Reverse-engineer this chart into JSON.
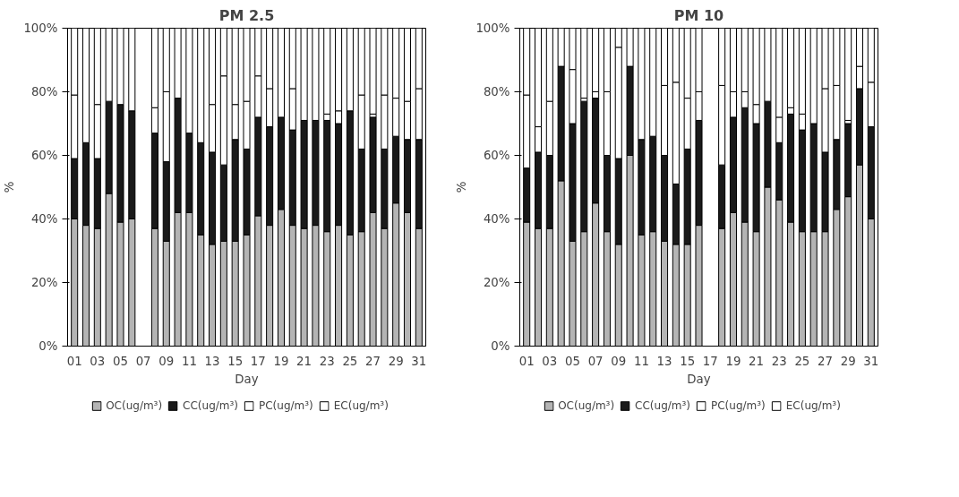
{
  "chart_data": [
    {
      "type": "bar",
      "title": "PM 2.5",
      "xlabel": "Day",
      "ylabel": "%",
      "stacked": true,
      "legend": "bottom",
      "grid": false,
      "categories": [
        "01",
        null,
        "03",
        null,
        "05",
        null,
        "07",
        null,
        "09",
        null,
        "11",
        null,
        "13",
        null,
        "15",
        null,
        "17",
        null,
        "19",
        null,
        "21",
        null,
        "23",
        null,
        "25",
        null,
        "27",
        null,
        "29",
        null,
        "31"
      ],
      "ylim": [
        0,
        100
      ],
      "yticks": [
        {
          "value": 0,
          "label": "0%"
        },
        {
          "value": 20,
          "label": "20%"
        },
        {
          "value": 40,
          "label": "40%"
        },
        {
          "value": 60,
          "label": "60%"
        },
        {
          "value": 80,
          "label": "80%"
        },
        {
          "value": 100,
          "label": "100%"
        }
      ],
      "series": [
        {
          "name": "OC(ug/m³)",
          "color": "#b4b4b4",
          "values": [
            40,
            38,
            37,
            48,
            39,
            40,
            null,
            37,
            33,
            42,
            42,
            35,
            32,
            33,
            33,
            35,
            41,
            38,
            43,
            38,
            37,
            38,
            36,
            38,
            35,
            36,
            42,
            37,
            45,
            42,
            37
          ]
        },
        {
          "name": "CC(ug/m³)",
          "color": "#1a1a1a",
          "values": [
            19,
            26,
            22,
            29,
            37,
            34,
            null,
            30,
            25,
            36,
            25,
            29,
            29,
            24,
            32,
            27,
            31,
            31,
            29,
            30,
            34,
            33,
            35,
            32,
            39,
            26,
            30,
            25,
            21,
            23,
            28
          ]
        },
        {
          "name": "PC(ug/m³)",
          "color": "#ffffff",
          "values": [
            20,
            36,
            17,
            23,
            24,
            26,
            null,
            8,
            22,
            22,
            33,
            36,
            15,
            28,
            11,
            15,
            13,
            12,
            28,
            13,
            29,
            29,
            2,
            4,
            26,
            17,
            1,
            17,
            12,
            12,
            16
          ]
        },
        {
          "name": "EC(ug/m³)",
          "color": "#ffffff",
          "values": [
            21,
            0,
            24,
            0,
            0,
            0,
            null,
            25,
            20,
            0,
            0,
            0,
            24,
            15,
            24,
            23,
            15,
            19,
            0,
            19,
            0,
            0,
            27,
            26,
            0,
            21,
            27,
            21,
            22,
            23,
            19
          ]
        }
      ]
    },
    {
      "type": "bar",
      "title": "PM 10",
      "xlabel": "Day",
      "ylabel": "%",
      "stacked": true,
      "legend": "bottom",
      "grid": false,
      "categories": [
        "01",
        null,
        "03",
        null,
        "05",
        null,
        "07",
        null,
        "09",
        null,
        "11",
        null,
        "13",
        null,
        "15",
        null,
        "17",
        null,
        "19",
        null,
        "21",
        null,
        "23",
        null,
        "25",
        null,
        "27",
        null,
        "29",
        null,
        "31"
      ],
      "ylim": [
        0,
        100
      ],
      "yticks": [
        {
          "value": 0,
          "label": "0%"
        },
        {
          "value": 20,
          "label": "20%"
        },
        {
          "value": 40,
          "label": "40%"
        },
        {
          "value": 60,
          "label": "60%"
        },
        {
          "value": 80,
          "label": "80%"
        },
        {
          "value": 100,
          "label": "100%"
        }
      ],
      "series": [
        {
          "name": "OC(ug/m³)",
          "color": "#b4b4b4",
          "values": [
            39,
            37,
            37,
            52,
            33,
            36,
            45,
            36,
            32,
            60,
            35,
            36,
            33,
            32,
            32,
            38,
            null,
            37,
            42,
            39,
            36,
            50,
            46,
            39,
            36,
            36,
            36,
            43,
            47,
            57,
            40
          ]
        },
        {
          "name": "CC(ug/m³)",
          "color": "#1a1a1a",
          "values": [
            17,
            24,
            23,
            36,
            37,
            41,
            33,
            24,
            27,
            28,
            30,
            30,
            27,
            19,
            30,
            33,
            null,
            20,
            30,
            36,
            34,
            27,
            18,
            34,
            32,
            34,
            25,
            22,
            23,
            24,
            29
          ]
        },
        {
          "name": "PC(ug/m³)",
          "color": "#ffffff",
          "values": [
            23,
            8,
            17,
            12,
            17,
            1,
            2,
            20,
            35,
            12,
            35,
            34,
            22,
            32,
            16,
            9,
            null,
            25,
            8,
            5,
            6,
            23,
            8,
            2,
            5,
            30,
            20,
            17,
            1,
            7,
            14
          ]
        },
        {
          "name": "EC(ug/m³)",
          "color": "#ffffff",
          "values": [
            21,
            31,
            23,
            0,
            13,
            22,
            20,
            20,
            6,
            0,
            0,
            0,
            18,
            17,
            22,
            20,
            null,
            18,
            20,
            20,
            24,
            0,
            28,
            25,
            27,
            0,
            19,
            18,
            29,
            12,
            17
          ]
        }
      ]
    }
  ]
}
